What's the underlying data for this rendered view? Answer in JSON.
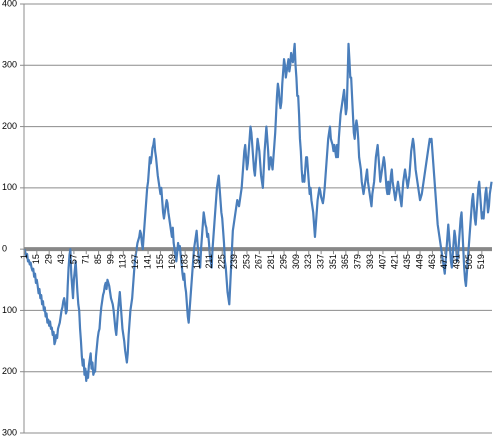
{
  "chart_data": {
    "type": "line",
    "categories": [
      1,
      null,
      null,
      null,
      null,
      null,
      null,
      null,
      null,
      null,
      null,
      null,
      null,
      null,
      15,
      null,
      null,
      null,
      null,
      null,
      null,
      null,
      null,
      null,
      null,
      null,
      null,
      null,
      29,
      null,
      null,
      null,
      null,
      null,
      null,
      null,
      null,
      null,
      null,
      null,
      null,
      null,
      43,
      null,
      null,
      null,
      null,
      null,
      null,
      null,
      null,
      null,
      null,
      null,
      null,
      null,
      57,
      null,
      null,
      null,
      null,
      null,
      null,
      null,
      null,
      null,
      null,
      null,
      null,
      null,
      71,
      null,
      null,
      null,
      null,
      null,
      null,
      null,
      null,
      null,
      null,
      null,
      null,
      null,
      85,
      null,
      null,
      null,
      null,
      null,
      null,
      null,
      null,
      null,
      null,
      null,
      null,
      null,
      99,
      null,
      null,
      null,
      null,
      null,
      null,
      null,
      null,
      null,
      null,
      null,
      null,
      null,
      113,
      null,
      null,
      null,
      null,
      null,
      null,
      null,
      null,
      null,
      null,
      null,
      null,
      null,
      127,
      null,
      null,
      null,
      null,
      null,
      null,
      null,
      null,
      null,
      null,
      null,
      null,
      null,
      141,
      null,
      null,
      null,
      null,
      null,
      null,
      null,
      null,
      null,
      null,
      null,
      null,
      null,
      155,
      null,
      null,
      null,
      null,
      null,
      null,
      null,
      null,
      null,
      null,
      null,
      null,
      null,
      169,
      null,
      null,
      null,
      null,
      null,
      null,
      null,
      null,
      null,
      null,
      null,
      null,
      null,
      183,
      null,
      null,
      null,
      null,
      null,
      null,
      null,
      null,
      null,
      null,
      null,
      null,
      null,
      197,
      null,
      null,
      null,
      null,
      null,
      null,
      null,
      null,
      null,
      null,
      null,
      null,
      null,
      211,
      null,
      null,
      null,
      null,
      null,
      null,
      null,
      null,
      null,
      null,
      null,
      null,
      null,
      225,
      null,
      null,
      null,
      null,
      null,
      null,
      null,
      null,
      null,
      null,
      null,
      null,
      null,
      239,
      null,
      null,
      null,
      null,
      null,
      null,
      null,
      null,
      null,
      null,
      null,
      null,
      null,
      253,
      null,
      null,
      null,
      null,
      null,
      null,
      null,
      null,
      null,
      null,
      null,
      null,
      null,
      267,
      null,
      null,
      null,
      null,
      null,
      null,
      null,
      null,
      null,
      null,
      null,
      null,
      null,
      281,
      null,
      null,
      null,
      null,
      null,
      null,
      null,
      null,
      null,
      null,
      null,
      null,
      null,
      295,
      null,
      null,
      null,
      null,
      null,
      null,
      null,
      null,
      null,
      null,
      null,
      null,
      null,
      309,
      null,
      null,
      null,
      null,
      null,
      null,
      null,
      null,
      null,
      null,
      null,
      null,
      null,
      323,
      null,
      null,
      null,
      null,
      null,
      null,
      null,
      null,
      null,
      null,
      null,
      null,
      null,
      337,
      null,
      null,
      null,
      null,
      null,
      null,
      null,
      null,
      null,
      null,
      null,
      null,
      null,
      351,
      null,
      null,
      null,
      null,
      null,
      null,
      null,
      null,
      null,
      null,
      null,
      null,
      null,
      365,
      null,
      null,
      null,
      null,
      null,
      null,
      null,
      null,
      null,
      null,
      null,
      null,
      null,
      379,
      null,
      null,
      null,
      null,
      null,
      null,
      null,
      null,
      null,
      null,
      null,
      null,
      null,
      393,
      null,
      null,
      null,
      null,
      null,
      null,
      null,
      null,
      null,
      null,
      null,
      null,
      null,
      407,
      null,
      null,
      null,
      null,
      null,
      null,
      null,
      null,
      null,
      null,
      null,
      null,
      null,
      421,
      null,
      null,
      null,
      null,
      null,
      null,
      null,
      null,
      null,
      null,
      null,
      null,
      null,
      435,
      null,
      null,
      null,
      null,
      null,
      null,
      null,
      null,
      null,
      null,
      null,
      null,
      null,
      449,
      null,
      null,
      null,
      null,
      null,
      null,
      null,
      null,
      null,
      null,
      null,
      null,
      null,
      463,
      null,
      null,
      null,
      null,
      null,
      null,
      null,
      null,
      null,
      null,
      null,
      null,
      null,
      477,
      null,
      null,
      null,
      null,
      null,
      null,
      null,
      null,
      null,
      null,
      null,
      null,
      null,
      491,
      null,
      null,
      null,
      null,
      null,
      null,
      null,
      null,
      null,
      null,
      null,
      null,
      null,
      505,
      null,
      null,
      null,
      null,
      null,
      null,
      null,
      null,
      null,
      null,
      null,
      null,
      null,
      519,
      null,
      null,
      null,
      null,
      null,
      null,
      null,
      null,
      null,
      null,
      null
    ],
    "values": [
      0,
      -5,
      -12,
      -8,
      -20,
      -18,
      -25,
      -22,
      -30,
      -35,
      -32,
      -45,
      -40,
      -55,
      -50,
      -60,
      -72,
      -65,
      -80,
      -75,
      -90,
      -85,
      -100,
      -95,
      -110,
      -105,
      -120,
      -115,
      -125,
      -118,
      -130,
      -128,
      -140,
      -135,
      -155,
      -150,
      -140,
      -145,
      -130,
      -125,
      -120,
      -110,
      -100,
      -95,
      -85,
      -80,
      -90,
      -105,
      -100,
      -60,
      -30,
      -10,
      0,
      -40,
      -60,
      -80,
      -50,
      -35,
      -20,
      -45,
      -70,
      -90,
      -100,
      -130,
      -150,
      -175,
      -190,
      -180,
      -205,
      -195,
      -215,
      -200,
      -210,
      -190,
      -180,
      -170,
      -195,
      -185,
      -205,
      -200,
      -200,
      -175,
      -160,
      -145,
      -135,
      -130,
      -110,
      -95,
      -85,
      -75,
      -70,
      -60,
      -55,
      -65,
      -50,
      -55,
      -60,
      -70,
      -80,
      -85,
      -90,
      -100,
      -115,
      -130,
      -140,
      -120,
      -100,
      -85,
      -70,
      -90,
      -110,
      -130,
      -140,
      -150,
      -165,
      -175,
      -185,
      -170,
      -140,
      -120,
      -100,
      -90,
      -80,
      -60,
      -40,
      -20,
      -10,
      0,
      10,
      15,
      20,
      30,
      25,
      10,
      0,
      20,
      40,
      60,
      80,
      100,
      110,
      130,
      150,
      140,
      150,
      165,
      170,
      180,
      160,
      150,
      135,
      120,
      110,
      100,
      90,
      100,
      80,
      60,
      50,
      60,
      70,
      80,
      75,
      60,
      50,
      40,
      30,
      20,
      35,
      10,
      0,
      -10,
      -20,
      -5,
      10,
      0,
      5,
      -10,
      -25,
      -40,
      -50,
      -40,
      -60,
      -70,
      -90,
      -110,
      -120,
      -100,
      -80,
      -60,
      -40,
      -20,
      0,
      10,
      20,
      30,
      10,
      -10,
      -20,
      -30,
      0,
      20,
      40,
      60,
      50,
      40,
      35,
      20,
      25,
      10,
      -10,
      -20,
      -30,
      0,
      20,
      40,
      60,
      80,
      100,
      110,
      120,
      100,
      80,
      60,
      50,
      30,
      10,
      -20,
      -30,
      -50,
      -70,
      -80,
      -90,
      -60,
      -30,
      0,
      30,
      40,
      50,
      60,
      70,
      80,
      75,
      70,
      80,
      90,
      100,
      120,
      140,
      160,
      170,
      150,
      130,
      140,
      160,
      180,
      200,
      190,
      170,
      150,
      130,
      120,
      140,
      160,
      180,
      170,
      160,
      140,
      120,
      110,
      100,
      130,
      160,
      180,
      200,
      180,
      160,
      130,
      140,
      150,
      140,
      130,
      150,
      170,
      190,
      220,
      250,
      270,
      260,
      240,
      230,
      240,
      270,
      290,
      310,
      300,
      280,
      290,
      300,
      310,
      290,
      300,
      320,
      310,
      305,
      320,
      335,
      300,
      280,
      250,
      250,
      220,
      180,
      160,
      130,
      110,
      120,
      110,
      130,
      150,
      150,
      130,
      110,
      90,
      100,
      80,
      70,
      60,
      40,
      20,
      40,
      60,
      80,
      90,
      100,
      95,
      85,
      80,
      75,
      85,
      100,
      120,
      140,
      160,
      180,
      190,
      200,
      180,
      175,
      170,
      160,
      170,
      160,
      150,
      170,
      150,
      180,
      200,
      220,
      230,
      240,
      250,
      260,
      240,
      220,
      230,
      280,
      335,
      310,
      280,
      280,
      250,
      220,
      190,
      180,
      200,
      210,
      200,
      180,
      150,
      140,
      130,
      110,
      100,
      90,
      100,
      110,
      120,
      130,
      110,
      100,
      90,
      80,
      70,
      90,
      100,
      110,
      130,
      150,
      160,
      170,
      150,
      130,
      110,
      120,
      130,
      140,
      150,
      140,
      120,
      100,
      90,
      110,
      90,
      100,
      120,
      130,
      110,
      100,
      90,
      80,
      90,
      100,
      110,
      100,
      90,
      80,
      70,
      90,
      110,
      120,
      130,
      120,
      110,
      100,
      110,
      120,
      140,
      160,
      170,
      180,
      170,
      150,
      130,
      120,
      110,
      100,
      90,
      80,
      85,
      90,
      100,
      110,
      120,
      130,
      140,
      150,
      160,
      170,
      180,
      175,
      180,
      160,
      140,
      120,
      100,
      80,
      60,
      40,
      30,
      20,
      10,
      0,
      -10,
      -20,
      -30,
      -40,
      -20,
      0,
      20,
      40,
      20,
      0,
      -20,
      -30,
      -10,
      10,
      30,
      20,
      0,
      -20,
      -10,
      10,
      30,
      50,
      60,
      30,
      0,
      -30,
      -50,
      -60,
      -40,
      -20,
      0,
      20,
      40,
      60,
      80,
      90,
      70,
      50,
      40,
      60,
      80,
      100,
      110,
      90,
      70,
      50,
      60,
      50,
      70,
      90,
      100,
      80,
      60,
      70,
      90,
      100,
      110
    ],
    "color": "#4a7ebb",
    "ylim": [
      -300,
      400
    ],
    "yticks": [
      {
        "value": -300,
        "label": "300"
      },
      {
        "value": -200,
        "label": "200"
      },
      {
        "value": -100,
        "label": "100"
      },
      0,
      100,
      200,
      300,
      400
    ],
    "grid": true
  }
}
